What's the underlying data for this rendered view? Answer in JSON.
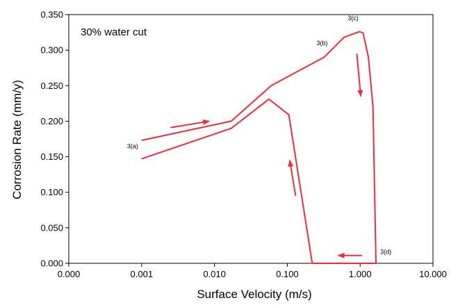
{
  "chart_data": {
    "type": "line",
    "title": "30% water cut",
    "xlabel": "Surface Velocity (m/s)",
    "ylabel": "Corrosion Rate (mm/y)",
    "x_scale": "log",
    "xlim": [
      0.0001,
      10
    ],
    "ylim": [
      0,
      0.35
    ],
    "x_tick_values": [
      0.0001,
      0.001,
      0.01,
      0.1,
      1,
      10
    ],
    "x_tick_labels": [
      "0.000",
      "0.001",
      "0.010",
      "0.100",
      "1.000",
      "10.000"
    ],
    "y_tick_values": [
      0,
      0.05,
      0.1,
      0.15,
      0.2,
      0.25,
      0.3,
      0.35
    ],
    "y_tick_labels": [
      "0.000",
      "0.050",
      "0.100",
      "0.150",
      "0.200",
      "0.250",
      "0.300",
      "0.350"
    ],
    "grid": false,
    "legend": "none",
    "line_color": "#ef2b3b",
    "series": [
      {
        "x": [
          0.001,
          0.017,
          0.06,
          0.32,
          0.6,
          0.98,
          1.1,
          1.3,
          1.5,
          1.65
        ],
        "y": [
          0.173,
          0.2,
          0.25,
          0.29,
          0.318,
          0.326,
          0.324,
          0.29,
          0.22,
          0
        ]
      },
      {
        "x": [
          0.001,
          0.017,
          0.056,
          0.105,
          0.22,
          0.5,
          1.0,
          1.65
        ],
        "y": [
          0.147,
          0.19,
          0.231,
          0.209,
          0.0,
          0.0,
          0.0,
          0.0
        ]
      }
    ],
    "annotations": [
      {
        "text": "3(a)",
        "x": 0.00075,
        "y": 0.162
      },
      {
        "text": "3(b)",
        "x": 0.3,
        "y": 0.307
      },
      {
        "text": "3(c)",
        "x": 0.8,
        "y": 0.342
      },
      {
        "text": "3(d)",
        "x": 2.25,
        "y": 0.013
      }
    ],
    "arrows": [
      {
        "direction": "right",
        "from": [
          0.0025,
          0.191
        ],
        "to": [
          0.0085,
          0.2
        ]
      },
      {
        "direction": "down",
        "from": [
          0.9,
          0.295
        ],
        "to": [
          1.02,
          0.235
        ]
      },
      {
        "direction": "up",
        "from": [
          0.13,
          0.095
        ],
        "to": [
          0.108,
          0.145
        ]
      },
      {
        "direction": "left",
        "from": [
          1.06,
          0.011
        ],
        "to": [
          0.5,
          0.011
        ]
      }
    ]
  }
}
